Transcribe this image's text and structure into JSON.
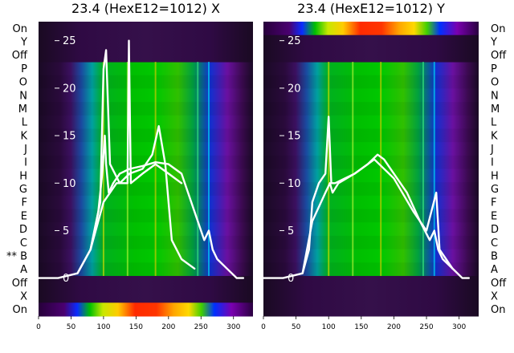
{
  "chart_data": [
    {
      "type": "heatmap",
      "title": "23.4 (HexE12=1012) X",
      "row_labels": [
        "On",
        "Y",
        "Off",
        "P",
        "O",
        "N",
        "M",
        "L",
        "K",
        "J",
        "I",
        "H",
        "G",
        "F",
        "E",
        "D",
        "C",
        "** B",
        "A",
        "Off",
        "X",
        "On"
      ],
      "x_ticks": [
        0,
        50,
        100,
        150,
        200,
        250,
        300
      ],
      "y_ticks": [
        0,
        5,
        10,
        15,
        20,
        25
      ],
      "xlim": [
        0,
        330
      ],
      "ylim": [
        -4,
        27
      ],
      "active_band": "bottom",
      "overlay_series": [
        {
          "x": [
            0,
            30,
            60,
            80,
            92,
            98,
            102,
            104,
            108,
            115,
            125,
            140,
            160,
            180,
            200,
            220,
            240,
            255,
            262,
            268,
            275,
            290,
            305,
            315
          ],
          "y": [
            0,
            0,
            0.5,
            3,
            7,
            11,
            15,
            12,
            9,
            10,
            11,
            11.5,
            11.8,
            12.2,
            12,
            11,
            7,
            4,
            5,
            3,
            2,
            1,
            0,
            0
          ]
        },
        {
          "x": [
            60,
            80,
            95,
            100,
            104,
            110,
            125,
            140,
            160,
            175,
            185,
            195,
            205,
            220,
            240
          ],
          "y": [
            0.5,
            3,
            8,
            22,
            24,
            12,
            10,
            11,
            11.5,
            13,
            16,
            12,
            4,
            2,
            1
          ]
        },
        {
          "x": [
            80,
            100,
            120,
            137,
            139,
            142,
            160,
            180,
            200,
            220
          ],
          "y": [
            3,
            8,
            10,
            10,
            25,
            10,
            11,
            12,
            11,
            10
          ]
        }
      ]
    },
    {
      "type": "heatmap",
      "title": "23.4 (HexE12=1012) Y",
      "row_labels": [
        "On",
        "Y",
        "Off",
        "P",
        "O",
        "N",
        "M",
        "L",
        "K",
        "J",
        "I",
        "H",
        "G",
        "F",
        "E",
        "D",
        "C",
        "B",
        "A",
        "Off",
        "X",
        "On"
      ],
      "x_ticks": [
        0,
        50,
        100,
        150,
        200,
        250,
        300
      ],
      "y_ticks": [
        0,
        5,
        10,
        15,
        20,
        25
      ],
      "xlim": [
        0,
        330
      ],
      "ylim": [
        -4,
        27
      ],
      "active_band": "top",
      "overlay_series": [
        {
          "x": [
            0,
            30,
            60,
            70,
            75,
            85,
            95,
            100,
            104,
            110,
            125,
            140,
            160,
            175,
            185,
            200,
            220,
            240,
            255,
            262,
            268,
            275,
            290,
            305,
            315
          ],
          "y": [
            0,
            0,
            0.5,
            3,
            8,
            10,
            11,
            17,
            10,
            10,
            10.5,
            11,
            12,
            13,
            12.5,
            11,
            9,
            6,
            4,
            5,
            3,
            2,
            1,
            0,
            0
          ]
        },
        {
          "x": [
            60,
            75,
            95,
            102,
            106,
            115,
            140,
            170,
            200,
            230,
            250,
            265,
            270,
            290
          ],
          "y": [
            0.5,
            6,
            9,
            10,
            9,
            10,
            11,
            12.5,
            10.5,
            7,
            5,
            9,
            3,
            1
          ]
        }
      ]
    }
  ]
}
